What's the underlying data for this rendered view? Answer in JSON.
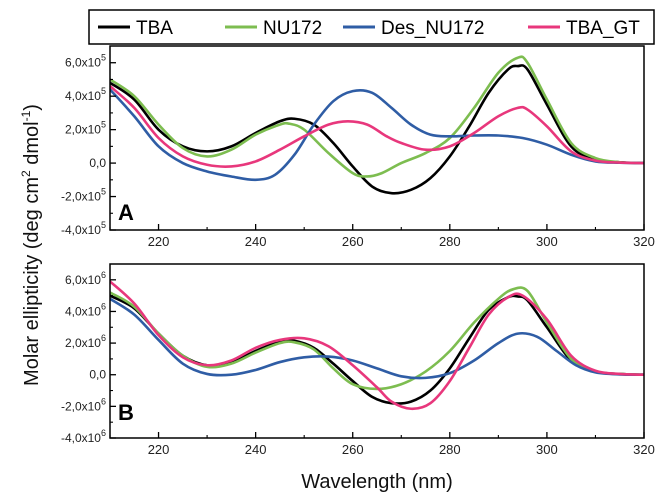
{
  "chart_data": [
    {
      "type": "line",
      "panel_label": "A",
      "xlim": [
        210,
        320
      ],
      "ylim": [
        -400000,
        700000
      ],
      "xticks": [
        220,
        240,
        260,
        280,
        300,
        320
      ],
      "yticks": [
        {
          "mant": "-4,0x10",
          "exp": "5",
          "value": -400000
        },
        {
          "mant": "-2,0x10",
          "exp": "5",
          "value": -200000
        },
        {
          "mant": "0,0",
          "exp": "",
          "value": 0
        },
        {
          "mant": "2,0x10",
          "exp": "5",
          "value": 200000
        },
        {
          "mant": "4,0x10",
          "exp": "5",
          "value": 400000
        },
        {
          "mant": "6,0x10",
          "exp": "5",
          "value": 600000
        }
      ],
      "grid": false,
      "series": [
        {
          "name": "TBA",
          "color": "#000000",
          "x": [
            210,
            215,
            220,
            225,
            230,
            235,
            240,
            245,
            248,
            252,
            256,
            260,
            264,
            268,
            272,
            276,
            280,
            284,
            288,
            292,
            294,
            296,
            300,
            305,
            310,
            315,
            320
          ],
          "y": [
            480000,
            380000,
            200000,
            100000,
            70000,
            100000,
            180000,
            250000,
            265000,
            230000,
            120000,
            -20000,
            -140000,
            -180000,
            -160000,
            -90000,
            40000,
            220000,
            420000,
            560000,
            580000,
            560000,
            350000,
            100000,
            20000,
            5000,
            0
          ]
        },
        {
          "name": "NU172",
          "color": "#7dbd50",
          "x": [
            210,
            215,
            220,
            225,
            230,
            235,
            240,
            245,
            247,
            250,
            255,
            260,
            263,
            266,
            270,
            275,
            280,
            285,
            290,
            294,
            296,
            300,
            305,
            310,
            315,
            320
          ],
          "y": [
            500000,
            400000,
            230000,
            90000,
            40000,
            80000,
            170000,
            230000,
            235000,
            200000,
            60000,
            -60000,
            -80000,
            -60000,
            0,
            60000,
            150000,
            330000,
            540000,
            630000,
            600000,
            380000,
            120000,
            30000,
            5000,
            0
          ]
        },
        {
          "name": "Des_NU172",
          "color": "#2f5da5",
          "x": [
            210,
            215,
            220,
            225,
            230,
            235,
            240,
            244,
            248,
            252,
            256,
            260,
            264,
            268,
            272,
            276,
            280,
            285,
            290,
            295,
            300,
            305,
            310,
            315,
            320
          ],
          "y": [
            440000,
            280000,
            100000,
            0,
            -50000,
            -80000,
            -100000,
            -70000,
            50000,
            230000,
            370000,
            430000,
            420000,
            330000,
            230000,
            170000,
            160000,
            165000,
            165000,
            150000,
            110000,
            50000,
            10000,
            2000,
            0
          ]
        },
        {
          "name": "TBA_GT",
          "color": "#e8377c",
          "x": [
            210,
            215,
            220,
            225,
            230,
            235,
            240,
            245,
            250,
            255,
            259,
            263,
            267,
            270,
            275,
            280,
            285,
            290,
            294,
            296,
            300,
            305,
            310,
            315,
            320
          ],
          "y": [
            460000,
            330000,
            150000,
            40000,
            -10000,
            -20000,
            10000,
            80000,
            160000,
            230000,
            250000,
            230000,
            160000,
            120000,
            80000,
            100000,
            180000,
            280000,
            330000,
            320000,
            220000,
            70000,
            15000,
            3000,
            0
          ]
        }
      ]
    },
    {
      "type": "line",
      "panel_label": "B",
      "xlim": [
        210,
        320
      ],
      "ylim": [
        -4000000,
        7000000
      ],
      "xticks": [
        220,
        240,
        260,
        280,
        300,
        320
      ],
      "yticks": [
        {
          "mant": "-4,0x10",
          "exp": "6",
          "value": -4000000
        },
        {
          "mant": "-2,0x10",
          "exp": "6",
          "value": -2000000
        },
        {
          "mant": "0,0",
          "exp": "",
          "value": 0
        },
        {
          "mant": "2,0x10",
          "exp": "6",
          "value": 2000000
        },
        {
          "mant": "4,0x10",
          "exp": "6",
          "value": 4000000
        },
        {
          "mant": "6,0x10",
          "exp": "6",
          "value": 6000000
        }
      ],
      "grid": false,
      "series": [
        {
          "name": "TBA",
          "color": "#000000",
          "x": [
            210,
            215,
            220,
            225,
            230,
            235,
            240,
            245,
            248,
            252,
            256,
            260,
            264,
            268,
            272,
            276,
            280,
            284,
            288,
            292,
            294,
            296,
            300,
            305,
            310,
            315,
            320
          ],
          "y": [
            5000000,
            4200000,
            2600000,
            1200000,
            600000,
            800000,
            1500000,
            2100000,
            2150000,
            1700000,
            700000,
            -400000,
            -1400000,
            -1800000,
            -1700000,
            -1000000,
            400000,
            2300000,
            4100000,
            4900000,
            4950000,
            4700000,
            3000000,
            900000,
            200000,
            50000,
            0
          ]
        },
        {
          "name": "NU172",
          "color": "#7dbd50",
          "x": [
            210,
            215,
            220,
            225,
            230,
            235,
            240,
            245,
            248,
            252,
            256,
            260,
            265,
            270,
            275,
            280,
            285,
            290,
            293,
            296,
            300,
            305,
            310,
            315,
            320
          ],
          "y": [
            5200000,
            4300000,
            2600000,
            1200000,
            500000,
            700000,
            1400000,
            2000000,
            2050000,
            1600000,
            400000,
            -600000,
            -900000,
            -600000,
            200000,
            1500000,
            3300000,
            4800000,
            5400000,
            5300000,
            3300000,
            1000000,
            200000,
            50000,
            0
          ]
        },
        {
          "name": "Des_NU172",
          "color": "#2f5da5",
          "x": [
            210,
            215,
            220,
            225,
            230,
            235,
            240,
            245,
            250,
            255,
            260,
            265,
            270,
            275,
            280,
            285,
            290,
            294,
            298,
            302,
            306,
            310,
            315,
            320
          ],
          "y": [
            4800000,
            3800000,
            2200000,
            700000,
            50000,
            0,
            300000,
            800000,
            1100000,
            1150000,
            900000,
            400000,
            -100000,
            -200000,
            100000,
            900000,
            2000000,
            2600000,
            2400000,
            1500000,
            600000,
            150000,
            20000,
            0
          ]
        },
        {
          "name": "TBA_GT",
          "color": "#e8377c",
          "x": [
            210,
            215,
            220,
            225,
            230,
            235,
            240,
            245,
            250,
            255,
            260,
            265,
            268,
            272,
            276,
            280,
            284,
            288,
            292,
            295,
            300,
            305,
            310,
            315,
            320
          ],
          "y": [
            5900000,
            4500000,
            2500000,
            1100000,
            600000,
            900000,
            1700000,
            2200000,
            2300000,
            1800000,
            600000,
            -800000,
            -1700000,
            -2150000,
            -1800000,
            -400000,
            1700000,
            3800000,
            4900000,
            5000000,
            3500000,
            1200000,
            250000,
            50000,
            0
          ]
        }
      ]
    }
  ],
  "legend": {
    "items": [
      {
        "label": "TBA",
        "color": "#000000"
      },
      {
        "label": "NU172",
        "color": "#7dbd50"
      },
      {
        "label": "Des_NU172",
        "color": "#2f5da5"
      },
      {
        "label": "TBA_GT",
        "color": "#e8377c"
      }
    ]
  },
  "xlabel": "Wavelength (nm)",
  "ylabel": {
    "prefix": "Molar ellipticity (deg cm",
    "sup1": "2",
    "middle": " dmol",
    "sup2": "-1",
    "suffix": ")"
  }
}
